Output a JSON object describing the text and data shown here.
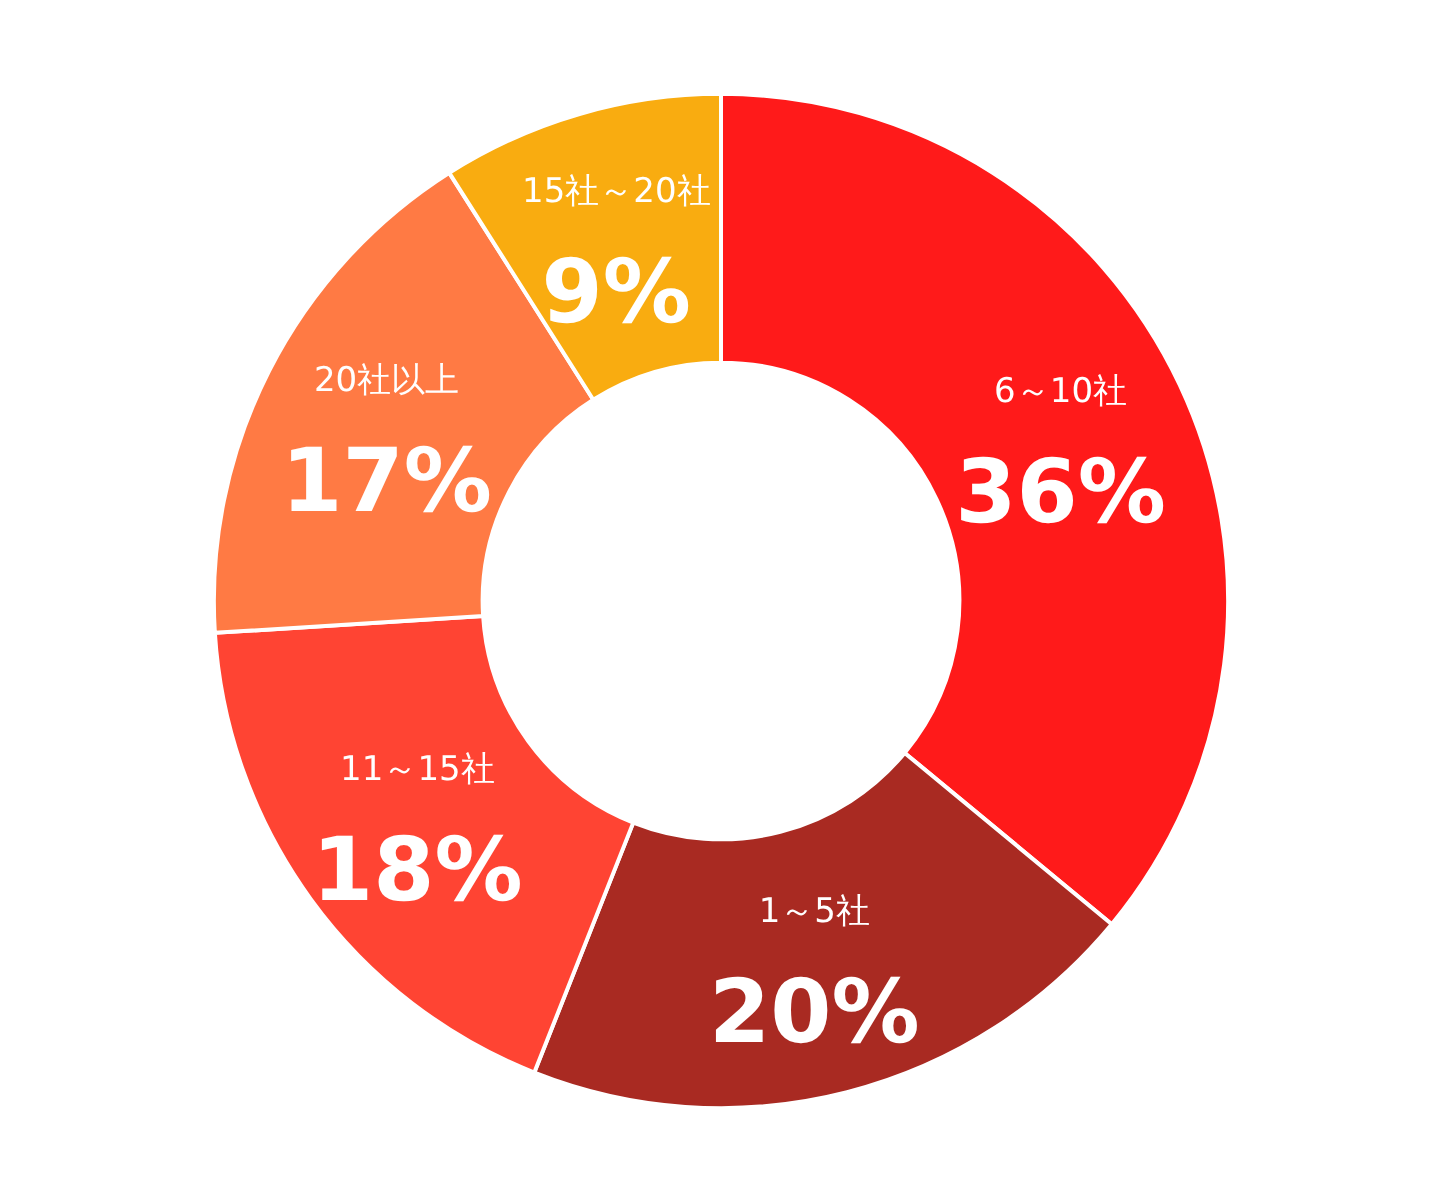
{
  "chart_data": {
    "type": "donut",
    "categories": [
      "6～10社",
      "1～5社",
      "11～15社",
      "20社以上",
      "15社～20社"
    ],
    "values": [
      36,
      20,
      18,
      17,
      9
    ],
    "value_labels": [
      "36%",
      "20%",
      "18%",
      "17%",
      "9%"
    ],
    "colors": [
      "#ff1a1a",
      "#a92a22",
      "#ff4433",
      "#ff7a44",
      "#f9ac10"
    ]
  }
}
